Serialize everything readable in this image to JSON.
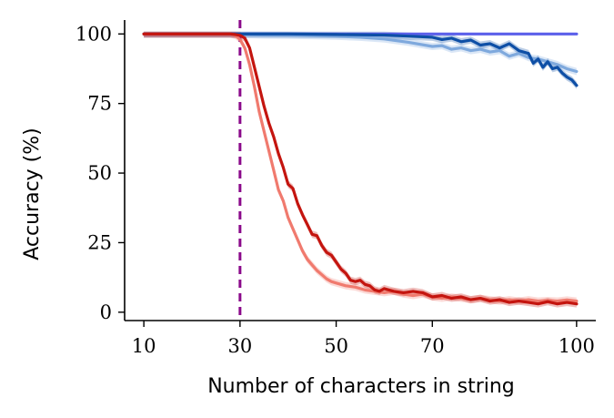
{
  "chart_data": {
    "type": "line",
    "xlabel": "Number of characters in string",
    "ylabel": "Accuracy (%)",
    "xlim": [
      6,
      104
    ],
    "ylim": [
      -3,
      105
    ],
    "xticks": [
      10,
      30,
      50,
      70,
      100
    ],
    "yticks": [
      0,
      25,
      50,
      75,
      100
    ],
    "grid": false,
    "reference_line": {
      "x": 30,
      "color": "#8B0A8B",
      "style": "dashed"
    },
    "series": [
      {
        "color": "#5B5FEA",
        "band": false,
        "x": [
          10,
          30,
          31,
          50,
          70,
          90,
          100
        ],
        "y": [
          100,
          100,
          100,
          100,
          100,
          100,
          100
        ]
      },
      {
        "color": "#7FA9DD",
        "band": true,
        "x": [
          10,
          30,
          31,
          35,
          40,
          45,
          50,
          55,
          60,
          65,
          70,
          72,
          74,
          76,
          78,
          80,
          82,
          84,
          86,
          88,
          90,
          92,
          94,
          96,
          98,
          100
        ],
        "y": [
          100,
          100,
          99.8,
          99.6,
          99.5,
          99.4,
          99.2,
          98.8,
          98.2,
          97,
          95.5,
          95.8,
          94.5,
          95,
          94,
          94.5,
          93.5,
          94,
          92,
          93,
          91.5,
          91,
          90,
          89,
          87.5,
          86.5
        ]
      },
      {
        "color": "#0E4FA6",
        "band": true,
        "x": [
          10,
          30,
          31,
          40,
          50,
          60,
          65,
          70,
          72,
          74,
          76,
          78,
          80,
          82,
          84,
          86,
          88,
          90,
          91,
          92,
          93,
          94,
          95,
          96,
          97,
          98,
          99,
          100
        ],
        "y": [
          100,
          100,
          100,
          100,
          99.8,
          99.6,
          99.2,
          98.8,
          98,
          98.5,
          97.2,
          97.8,
          96,
          96.5,
          95,
          96.5,
          94,
          93,
          89.5,
          91,
          88,
          90,
          87.5,
          88,
          86,
          84.5,
          83.5,
          81.5
        ]
      },
      {
        "color": "#F07A6E",
        "band": true,
        "x": [
          10,
          28,
          29,
          30,
          31,
          32,
          33,
          34,
          35,
          36,
          37,
          38,
          39,
          40,
          41,
          42,
          43,
          44,
          45,
          46,
          47,
          48,
          49,
          50,
          52,
          54,
          56,
          58,
          60,
          62,
          64,
          66,
          68,
          70,
          72,
          74,
          76,
          78,
          80,
          82,
          84,
          86,
          88,
          90,
          92,
          94,
          96,
          98,
          100
        ],
        "y": [
          100,
          100,
          99.5,
          98,
          95,
          89,
          81,
          72,
          65,
          58,
          51,
          44,
          40,
          34,
          30,
          26,
          22,
          19,
          17,
          15,
          13.5,
          12,
          11,
          10.5,
          9.5,
          9,
          8,
          7.5,
          7,
          7.5,
          6.5,
          6,
          6.5,
          5.5,
          5,
          5.5,
          5,
          4.5,
          5,
          4.5,
          4,
          4.5,
          4,
          4.5,
          4,
          4.2,
          4,
          4.4,
          4
        ]
      },
      {
        "color": "#C4150F",
        "band": true,
        "x": [
          10,
          28,
          29,
          30,
          31,
          32,
          33,
          34,
          35,
          36,
          37,
          38,
          39,
          40,
          41,
          42,
          43,
          44,
          45,
          46,
          47,
          48,
          49,
          50,
          51,
          52,
          53,
          54,
          55,
          56,
          57,
          58,
          59,
          60,
          62,
          64,
          66,
          68,
          70,
          72,
          74,
          76,
          78,
          80,
          82,
          84,
          86,
          88,
          90,
          92,
          94,
          96,
          98,
          100
        ],
        "y": [
          100,
          100,
          99.8,
          99.5,
          98.5,
          95,
          88,
          81,
          74,
          68,
          63,
          57,
          52,
          46,
          44.5,
          39,
          35,
          31.5,
          28,
          27.5,
          24,
          21.5,
          20.5,
          18,
          15.5,
          14,
          11.5,
          11,
          11.5,
          10,
          9.5,
          8,
          7.5,
          8.5,
          7.5,
          7,
          7.5,
          7,
          5.5,
          6,
          5,
          5.5,
          4.5,
          5,
          4,
          4.5,
          3.5,
          4,
          3.5,
          3,
          3.8,
          3,
          3.5,
          3
        ]
      }
    ]
  }
}
